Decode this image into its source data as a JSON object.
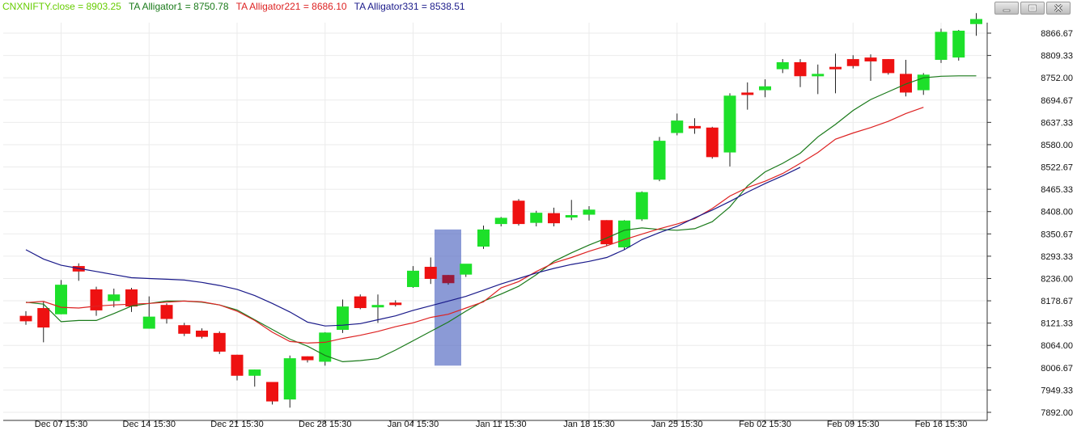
{
  "legend": {
    "close": {
      "label": "CNXNIFTY.close = 8903.25",
      "color": "#66cc00"
    },
    "alligator1": {
      "label": "TA Alligator1 = 8750.78",
      "color": "#1a7a1a"
    },
    "alligator221": {
      "label": "TA Alligator221 = 8686.10",
      "color": "#dd2222"
    },
    "alligator331": {
      "label": "TA Alligator331 = 8538.51",
      "color": "#1a1a8a"
    }
  },
  "window_controls": [
    "minimize-icon",
    "maximize-icon",
    "close-icon"
  ],
  "chart_data": {
    "type": "candlestick",
    "y_ticks": [
      "8866.67",
      "8809.33",
      "8752.00",
      "8694.67",
      "8637.33",
      "8580.00",
      "8522.67",
      "8465.33",
      "8408.00",
      "8350.67",
      "8293.33",
      "8236.00",
      "8178.67",
      "8121.33",
      "8064.00",
      "8006.67",
      "7949.33",
      "7892.00"
    ],
    "ylim": [
      7892,
      8866.67
    ],
    "x_ticks": [
      {
        "label": "Dec 07 15:30",
        "index": 2
      },
      {
        "label": "Dec 14 15:30",
        "index": 7
      },
      {
        "label": "Dec 21 15:30",
        "index": 12
      },
      {
        "label": "Dec 28 15:30",
        "index": 17
      },
      {
        "label": "Jan 04 15:30",
        "index": 22
      },
      {
        "label": "Jan 11 15:30",
        "index": 27
      },
      {
        "label": "Jan 18 15:30",
        "index": 32
      },
      {
        "label": "Jan 25 15:30",
        "index": 37
      },
      {
        "label": "Feb 02 15:30",
        "index": 42
      },
      {
        "label": "Feb 09 15:30",
        "index": 47
      },
      {
        "label": "Feb 16 15:30",
        "index": 52
      }
    ],
    "candles": [
      {
        "o": 8140,
        "h": 8152,
        "l": 8117,
        "c": 8126
      },
      {
        "o": 8160,
        "h": 8176,
        "l": 8072,
        "c": 8110
      },
      {
        "o": 8144,
        "h": 8232,
        "l": 8144,
        "c": 8220
      },
      {
        "o": 8268,
        "h": 8275,
        "l": 8230,
        "c": 8254
      },
      {
        "o": 8208,
        "h": 8215,
        "l": 8140,
        "c": 8154
      },
      {
        "o": 8178,
        "h": 8210,
        "l": 8162,
        "c": 8195
      },
      {
        "o": 8208,
        "h": 8212,
        "l": 8150,
        "c": 8164
      },
      {
        "o": 8107,
        "h": 8190,
        "l": 8107,
        "c": 8138
      },
      {
        "o": 8168,
        "h": 8172,
        "l": 8120,
        "c": 8132
      },
      {
        "o": 8116,
        "h": 8122,
        "l": 8088,
        "c": 8094
      },
      {
        "o": 8102,
        "h": 8108,
        "l": 8082,
        "c": 8086
      },
      {
        "o": 8096,
        "h": 8100,
        "l": 8042,
        "c": 8048
      },
      {
        "o": 8040,
        "h": 8040,
        "l": 7974,
        "c": 7986
      },
      {
        "o": 7986,
        "h": 8002,
        "l": 7958,
        "c": 8002
      },
      {
        "o": 7970,
        "h": 7970,
        "l": 7912,
        "c": 7920
      },
      {
        "o": 7925,
        "h": 8038,
        "l": 7904,
        "c": 8031
      },
      {
        "o": 8036,
        "h": 8036,
        "l": 8020,
        "c": 8026
      },
      {
        "o": 8022,
        "h": 8098,
        "l": 8012,
        "c": 8097
      },
      {
        "o": 8104,
        "h": 8182,
        "l": 8096,
        "c": 8164
      },
      {
        "o": 8190,
        "h": 8195,
        "l": 8157,
        "c": 8160
      },
      {
        "o": 8168,
        "h": 8195,
        "l": 8122,
        "c": 8168
      },
      {
        "o": 8174,
        "h": 8180,
        "l": 8164,
        "c": 8170
      },
      {
        "o": 8214,
        "h": 8268,
        "l": 8212,
        "c": 8256
      },
      {
        "o": 8266,
        "h": 8290,
        "l": 8222,
        "c": 8235
      },
      {
        "o": 8245,
        "h": 8245,
        "l": 8220,
        "c": 8224
      },
      {
        "o": 8246,
        "h": 8272,
        "l": 8240,
        "c": 8274
      },
      {
        "o": 8318,
        "h": 8372,
        "l": 8312,
        "c": 8362
      },
      {
        "o": 8376,
        "h": 8394,
        "l": 8370,
        "c": 8392
      },
      {
        "o": 8436,
        "h": 8440,
        "l": 8372,
        "c": 8376
      },
      {
        "o": 8379,
        "h": 8410,
        "l": 8370,
        "c": 8405
      },
      {
        "o": 8404,
        "h": 8418,
        "l": 8370,
        "c": 8378
      },
      {
        "o": 8395,
        "h": 8438,
        "l": 8386,
        "c": 8399
      },
      {
        "o": 8400,
        "h": 8422,
        "l": 8385,
        "c": 8413
      },
      {
        "o": 8386,
        "h": 8386,
        "l": 8320,
        "c": 8324
      },
      {
        "o": 8316,
        "h": 8386,
        "l": 8310,
        "c": 8385
      },
      {
        "o": 8388,
        "h": 8460,
        "l": 8384,
        "c": 8458
      },
      {
        "o": 8490,
        "h": 8600,
        "l": 8486,
        "c": 8590
      },
      {
        "o": 8610,
        "h": 8660,
        "l": 8604,
        "c": 8642
      },
      {
        "o": 8628,
        "h": 8648,
        "l": 8608,
        "c": 8624
      },
      {
        "o": 8624,
        "h": 8626,
        "l": 8544,
        "c": 8548
      },
      {
        "o": 8560,
        "h": 8712,
        "l": 8524,
        "c": 8706
      },
      {
        "o": 8714,
        "h": 8740,
        "l": 8670,
        "c": 8712
      },
      {
        "o": 8720,
        "h": 8748,
        "l": 8702,
        "c": 8730
      },
      {
        "o": 8774,
        "h": 8800,
        "l": 8764,
        "c": 8792
      },
      {
        "o": 8792,
        "h": 8800,
        "l": 8728,
        "c": 8756
      },
      {
        "o": 8758,
        "h": 8786,
        "l": 8710,
        "c": 8762
      },
      {
        "o": 8780,
        "h": 8814,
        "l": 8712,
        "c": 8774
      },
      {
        "o": 8800,
        "h": 8810,
        "l": 8776,
        "c": 8782
      },
      {
        "o": 8804,
        "h": 8812,
        "l": 8744,
        "c": 8794
      },
      {
        "o": 8800,
        "h": 8800,
        "l": 8760,
        "c": 8764
      },
      {
        "o": 8762,
        "h": 8798,
        "l": 8704,
        "c": 8714
      },
      {
        "o": 8720,
        "h": 8764,
        "l": 8708,
        "c": 8760
      },
      {
        "o": 8798,
        "h": 8878,
        "l": 8790,
        "c": 8870
      },
      {
        "o": 8804,
        "h": 8875,
        "l": 8796,
        "c": 8873
      },
      {
        "o": 8890,
        "h": 8918,
        "l": 8860,
        "c": 8903
      }
    ],
    "series": [
      {
        "color": "#1a7a1a",
        "points": [
          [
            0,
            8175
          ],
          [
            1,
            8170
          ],
          [
            2,
            8125
          ],
          [
            3,
            8128
          ],
          [
            4,
            8128
          ],
          [
            5,
            8146
          ],
          [
            6,
            8165
          ],
          [
            7,
            8172
          ],
          [
            8,
            8178
          ],
          [
            9,
            8178
          ],
          [
            10,
            8175
          ],
          [
            11,
            8168
          ],
          [
            12,
            8155
          ],
          [
            13,
            8130
          ],
          [
            14,
            8105
          ],
          [
            15,
            8080
          ],
          [
            16,
            8062
          ],
          [
            17,
            8038
          ],
          [
            18,
            8022
          ],
          [
            19,
            8025
          ],
          [
            20,
            8030
          ],
          [
            21,
            8052
          ],
          [
            22,
            8076
          ],
          [
            23,
            8100
          ],
          [
            24,
            8124
          ],
          [
            25,
            8152
          ],
          [
            26,
            8178
          ],
          [
            27,
            8196
          ],
          [
            28,
            8216
          ],
          [
            29,
            8246
          ],
          [
            30,
            8280
          ],
          [
            31,
            8302
          ],
          [
            32,
            8322
          ],
          [
            33,
            8340
          ],
          [
            34,
            8360
          ],
          [
            35,
            8366
          ],
          [
            36,
            8362
          ],
          [
            37,
            8360
          ],
          [
            38,
            8364
          ],
          [
            39,
            8382
          ],
          [
            40,
            8420
          ],
          [
            41,
            8474
          ],
          [
            42,
            8510
          ],
          [
            43,
            8532
          ],
          [
            44,
            8558
          ],
          [
            45,
            8600
          ],
          [
            46,
            8632
          ],
          [
            47,
            8668
          ],
          [
            48,
            8696
          ],
          [
            49,
            8716
          ],
          [
            50,
            8736
          ],
          [
            51,
            8752
          ],
          [
            52,
            8756
          ],
          [
            53,
            8757
          ],
          [
            54,
            8757
          ]
        ]
      },
      {
        "color": "#dd2222",
        "points": [
          [
            0,
            8174
          ],
          [
            1,
            8177
          ],
          [
            2,
            8162
          ],
          [
            3,
            8160
          ],
          [
            4,
            8165
          ],
          [
            5,
            8168
          ],
          [
            6,
            8170
          ],
          [
            7,
            8172
          ],
          [
            8,
            8175
          ],
          [
            9,
            8178
          ],
          [
            10,
            8176
          ],
          [
            11,
            8168
          ],
          [
            12,
            8152
          ],
          [
            13,
            8128
          ],
          [
            14,
            8098
          ],
          [
            15,
            8074
          ],
          [
            16,
            8070
          ],
          [
            17,
            8072
          ],
          [
            18,
            8082
          ],
          [
            19,
            8090
          ],
          [
            20,
            8100
          ],
          [
            21,
            8112
          ],
          [
            22,
            8122
          ],
          [
            23,
            8136
          ],
          [
            24,
            8144
          ],
          [
            25,
            8160
          ],
          [
            26,
            8176
          ],
          [
            27,
            8212
          ],
          [
            28,
            8228
          ],
          [
            29,
            8254
          ],
          [
            30,
            8276
          ],
          [
            31,
            8290
          ],
          [
            32,
            8306
          ],
          [
            33,
            8320
          ],
          [
            34,
            8336
          ],
          [
            35,
            8350
          ],
          [
            36,
            8364
          ],
          [
            37,
            8376
          ],
          [
            38,
            8390
          ],
          [
            39,
            8416
          ],
          [
            40,
            8448
          ],
          [
            41,
            8470
          ],
          [
            42,
            8486
          ],
          [
            43,
            8506
          ],
          [
            44,
            8532
          ],
          [
            45,
            8560
          ],
          [
            46,
            8594
          ],
          [
            47,
            8610
          ],
          [
            48,
            8624
          ],
          [
            49,
            8640
          ],
          [
            50,
            8660
          ],
          [
            51,
            8676
          ]
        ]
      },
      {
        "color": "#1a1a8a",
        "points": [
          [
            0,
            8310
          ],
          [
            1,
            8286
          ],
          [
            2,
            8270
          ],
          [
            3,
            8262
          ],
          [
            4,
            8254
          ],
          [
            5,
            8246
          ],
          [
            6,
            8238
          ],
          [
            7,
            8236
          ],
          [
            8,
            8234
          ],
          [
            9,
            8232
          ],
          [
            10,
            8226
          ],
          [
            11,
            8218
          ],
          [
            12,
            8208
          ],
          [
            13,
            8192
          ],
          [
            14,
            8172
          ],
          [
            15,
            8150
          ],
          [
            16,
            8124
          ],
          [
            17,
            8114
          ],
          [
            18,
            8116
          ],
          [
            19,
            8120
          ],
          [
            20,
            8130
          ],
          [
            21,
            8140
          ],
          [
            22,
            8154
          ],
          [
            23,
            8166
          ],
          [
            24,
            8178
          ],
          [
            25,
            8190
          ],
          [
            26,
            8206
          ],
          [
            27,
            8222
          ],
          [
            28,
            8236
          ],
          [
            29,
            8250
          ],
          [
            30,
            8262
          ],
          [
            31,
            8272
          ],
          [
            32,
            8280
          ],
          [
            33,
            8290
          ],
          [
            34,
            8310
          ],
          [
            35,
            8336
          ],
          [
            36,
            8354
          ],
          [
            37,
            8370
          ],
          [
            38,
            8392
          ],
          [
            39,
            8412
          ],
          [
            40,
            8434
          ],
          [
            41,
            8458
          ],
          [
            42,
            8480
          ],
          [
            43,
            8500
          ],
          [
            44,
            8522
          ]
        ]
      }
    ]
  }
}
